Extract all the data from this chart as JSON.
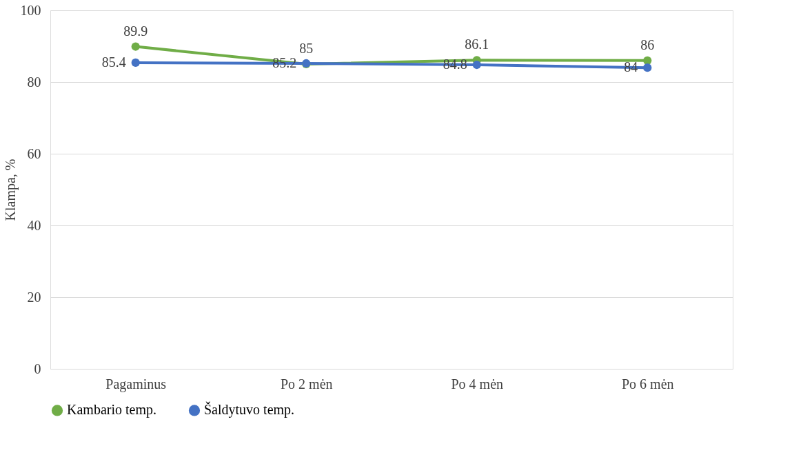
{
  "chart_data": {
    "type": "line",
    "ylabel": "Klampa, %",
    "categories": [
      "Pagaminus",
      "Po 2 mėn",
      "Po 4 mėn",
      "Po 6 mėn"
    ],
    "series": [
      {
        "name": "Kambario temp.",
        "color": "#70ad47",
        "values": [
          89.9,
          85,
          86.1,
          86
        ]
      },
      {
        "name": "Šaldytuvo temp.",
        "color": "#4472c4",
        "values": [
          85.4,
          85.2,
          84.8,
          84
        ]
      }
    ],
    "ylim": [
      0,
      100
    ],
    "yticks": [
      0,
      20,
      40,
      60,
      80,
      100
    ],
    "grid": "y",
    "legend": "bottom",
    "marker": "circle",
    "line_style": "solid",
    "data_labels": true
  }
}
